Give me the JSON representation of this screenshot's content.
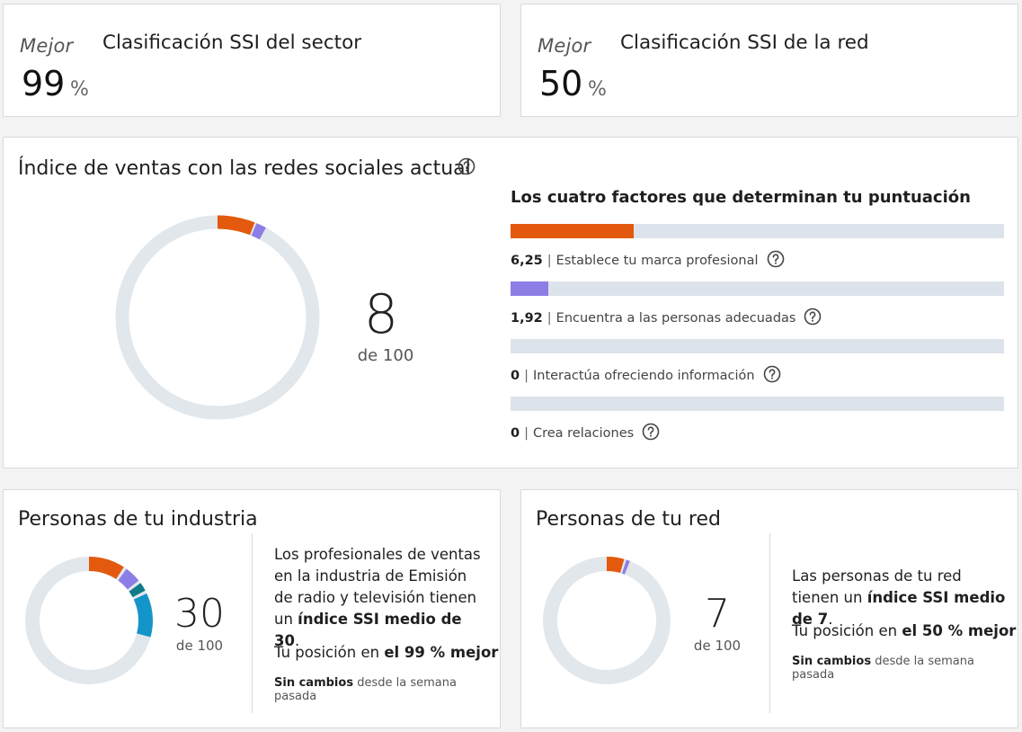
{
  "sector_rank": {
    "label": "Mejor",
    "value": "99",
    "unit": "%",
    "title": "Clasificación SSI del sector"
  },
  "network_rank": {
    "label": "Mejor",
    "value": "50",
    "unit": "%",
    "title": "Clasificación SSI de la red"
  },
  "ssi": {
    "title": "Índice de ventas con las redes sociales actual",
    "score": "8",
    "score_of": "de 100",
    "score_value": 8,
    "factors_title": "Los cuatro factores que determinan tu puntuación",
    "factors": [
      {
        "value": "6,25",
        "label": "Establece tu marca profesional",
        "score": 6.25,
        "max": 25,
        "color": "#e35a0e"
      },
      {
        "value": "1,92",
        "label": "Encuentra a las personas adecuadas",
        "score": 1.92,
        "max": 25,
        "color": "#8d7ee6"
      },
      {
        "value": "0",
        "label": "Interactúa ofreciendo información",
        "score": 0,
        "max": 25,
        "color": "#0f7b8a"
      },
      {
        "value": "0",
        "label": "Crea relaciones",
        "score": 0,
        "max": 25,
        "color": "#1495c9"
      }
    ],
    "track_color": "#e2e7ec"
  },
  "industry": {
    "title": "Personas de tu industria",
    "score": "30",
    "score_of": "de 100",
    "segments": [
      10,
      5,
      3,
      12
    ],
    "desc_1": "Los profesionales de ventas en la industria de Emisión de radio y televisión tienen un",
    "desc_bold": "índice SSI medio de 30",
    "desc_end": ".",
    "pos_prefix": "Tu posición en",
    "pos_bold": "el 99 % mejor",
    "change_bold": "Sin cambios",
    "change_rest": "desde la semana pasada"
  },
  "network": {
    "title": "Personas de tu red",
    "score": "7",
    "score_of": "de 100",
    "segments": [
      5,
      1.5,
      0,
      0
    ],
    "desc_1": "Las personas de tu red tienen un",
    "desc_bold": "índice SSI medio de 7",
    "desc_end": ".",
    "pos_prefix": "Tu posición en",
    "pos_bold": "el 50 % mejor",
    "change_bold": "Sin cambios",
    "change_rest": "desde la semana pasada"
  },
  "icons": {
    "help": "help-circle-icon"
  }
}
